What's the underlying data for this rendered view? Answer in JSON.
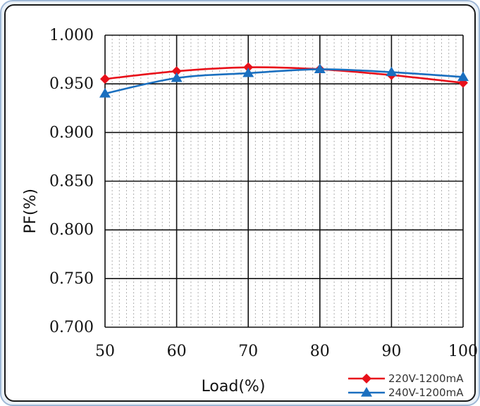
{
  "chart_data": {
    "type": "line",
    "title": "",
    "xlabel": "Load(%)",
    "ylabel": "PF(%)",
    "x": [
      50,
      60,
      70,
      80,
      90,
      100
    ],
    "x_ticks": [
      "50",
      "60",
      "70",
      "80",
      "90",
      "100"
    ],
    "y_ticks": [
      "1.000",
      "0.950",
      "0.900",
      "0.850",
      "0.800",
      "0.750",
      "0.700"
    ],
    "xlim": [
      50,
      100
    ],
    "ylim": [
      0.7,
      1.0
    ],
    "grid": true,
    "minor_grid": true,
    "legend_position": "bottom-right",
    "series": [
      {
        "name": "220V-1200mA",
        "marker": "diamond",
        "color": "#e8101a",
        "values": [
          0.955,
          0.963,
          0.967,
          0.965,
          0.959,
          0.951
        ]
      },
      {
        "name": "240V-1200mA",
        "marker": "triangle",
        "color": "#1a6fbf",
        "values": [
          0.94,
          0.956,
          0.961,
          0.965,
          0.962,
          0.957
        ]
      }
    ]
  }
}
